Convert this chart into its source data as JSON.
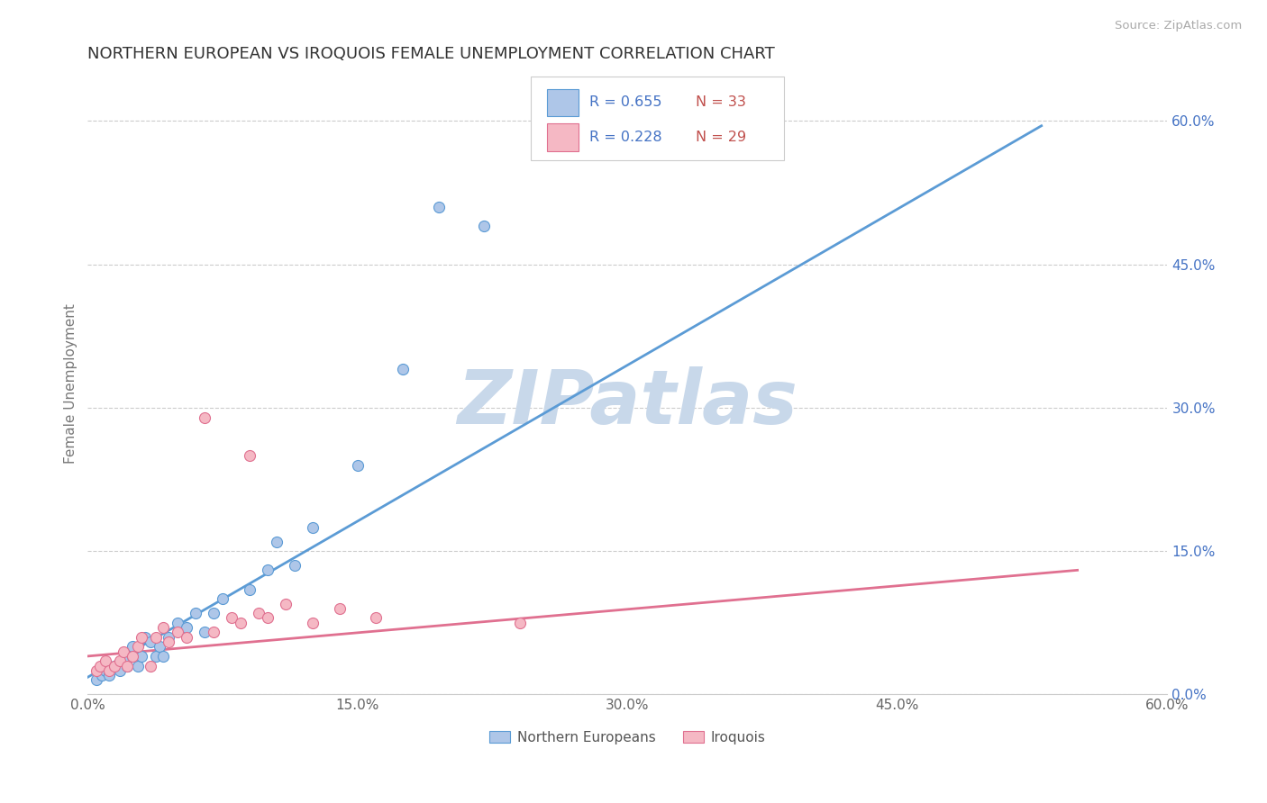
{
  "title": "NORTHERN EUROPEAN VS IROQUOIS FEMALE UNEMPLOYMENT CORRELATION CHART",
  "source": "Source: ZipAtlas.com",
  "ylabel": "Female Unemployment",
  "xlim": [
    0.0,
    0.6
  ],
  "ylim": [
    0.0,
    0.65
  ],
  "xtick_labels": [
    "0.0%",
    "15.0%",
    "30.0%",
    "45.0%",
    "60.0%"
  ],
  "xtick_vals": [
    0.0,
    0.15,
    0.3,
    0.45,
    0.6
  ],
  "ytick_labels_right": [
    "60.0%",
    "45.0%",
    "30.0%",
    "15.0%",
    "0.0%"
  ],
  "ytick_vals_right": [
    0.6,
    0.45,
    0.3,
    0.15,
    0.0
  ],
  "grid_color": "#cccccc",
  "background_color": "#ffffff",
  "title_color": "#333333",
  "source_color": "#aaaaaa",
  "watermark_text": "ZIPatlas",
  "watermark_color": "#c8d8ea",
  "ne_color": "#aec6e8",
  "ne_edge_color": "#5b9bd5",
  "iroquois_color": "#f5b8c4",
  "iroquois_edge_color": "#e07090",
  "ne_line_color": "#5b9bd5",
  "iroquois_line_color": "#e07090",
  "ne_x": [
    0.005,
    0.008,
    0.01,
    0.012,
    0.015,
    0.018,
    0.02,
    0.022,
    0.025,
    0.025,
    0.028,
    0.03,
    0.032,
    0.035,
    0.038,
    0.04,
    0.042,
    0.045,
    0.05,
    0.055,
    0.06,
    0.065,
    0.07,
    0.075,
    0.09,
    0.1,
    0.105,
    0.115,
    0.125,
    0.15,
    0.175,
    0.195,
    0.22
  ],
  "ne_y": [
    0.015,
    0.02,
    0.025,
    0.02,
    0.03,
    0.025,
    0.035,
    0.03,
    0.04,
    0.05,
    0.03,
    0.04,
    0.06,
    0.055,
    0.04,
    0.05,
    0.04,
    0.06,
    0.075,
    0.07,
    0.085,
    0.065,
    0.085,
    0.1,
    0.11,
    0.13,
    0.16,
    0.135,
    0.175,
    0.24,
    0.34,
    0.51,
    0.49
  ],
  "iro_x": [
    0.005,
    0.007,
    0.01,
    0.012,
    0.015,
    0.018,
    0.02,
    0.022,
    0.025,
    0.028,
    0.03,
    0.035,
    0.038,
    0.042,
    0.045,
    0.05,
    0.055,
    0.065,
    0.07,
    0.08,
    0.085,
    0.09,
    0.095,
    0.1,
    0.11,
    0.125,
    0.14,
    0.16,
    0.24
  ],
  "iro_y": [
    0.025,
    0.03,
    0.035,
    0.025,
    0.03,
    0.035,
    0.045,
    0.03,
    0.04,
    0.05,
    0.06,
    0.03,
    0.06,
    0.07,
    0.055,
    0.065,
    0.06,
    0.29,
    0.065,
    0.08,
    0.075,
    0.25,
    0.085,
    0.08,
    0.095,
    0.075,
    0.09,
    0.08,
    0.075
  ],
  "ne_line_x": [
    0.0,
    0.53
  ],
  "ne_line_y": [
    0.018,
    0.595
  ],
  "iro_line_x": [
    0.0,
    0.55
  ],
  "iro_line_y": [
    0.04,
    0.13
  ],
  "legend_label_ne": "Northern Europeans",
  "legend_label_iro": "Iroquois",
  "legend_R_color": "#4472c4",
  "legend_N_color": "#c0504d",
  "marker_size": 75
}
